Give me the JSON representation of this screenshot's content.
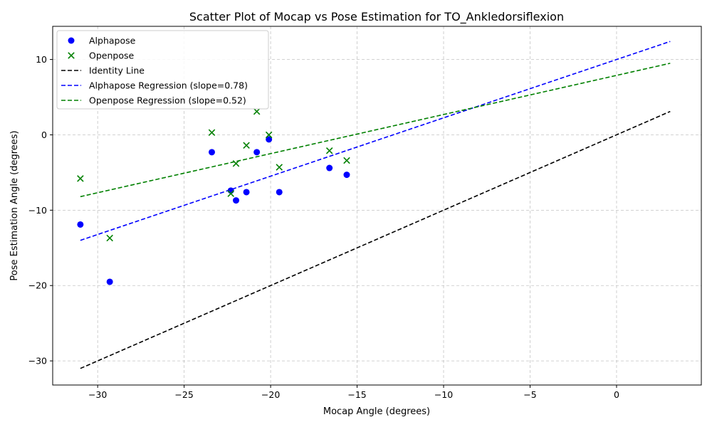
{
  "chart_data": {
    "type": "scatter",
    "title": "Scatter Plot of Mocap vs Pose Estimation for TO_Ankledorsiflexion",
    "xlabel": "Mocap Angle (degrees)",
    "ylabel": "Pose Estimation Angle (degrees)",
    "xlim": [
      -32.6,
      4.9
    ],
    "ylim": [
      -33.2,
      14.4
    ],
    "xticks": [
      -30,
      -25,
      -20,
      -15,
      -10,
      -5,
      0
    ],
    "yticks": [
      -30,
      -20,
      -10,
      0,
      10
    ],
    "xtick_labels": [
      "−30",
      "−25",
      "−20",
      "−15",
      "−10",
      "−5",
      "0"
    ],
    "ytick_labels": [
      "−30",
      "−20",
      "−10",
      "0",
      "10"
    ],
    "grid": true,
    "legend_position": "top-left",
    "series": [
      {
        "name": "Alphapose",
        "kind": "scatter",
        "marker": "circle",
        "color": "#0000ff",
        "points": [
          [
            -31.0,
            -11.9
          ],
          [
            -29.3,
            -19.5
          ],
          [
            -23.4,
            -2.3
          ],
          [
            -22.3,
            -7.4
          ],
          [
            -22.0,
            -8.7
          ],
          [
            -21.4,
            -7.6
          ],
          [
            -20.8,
            -2.3
          ],
          [
            -20.1,
            -0.6
          ],
          [
            -19.5,
            -7.6
          ],
          [
            -16.6,
            -4.4
          ],
          [
            -15.6,
            -5.3
          ]
        ]
      },
      {
        "name": "Openpose",
        "kind": "scatter",
        "marker": "x",
        "color": "#008000",
        "points": [
          [
            -31.0,
            -5.8
          ],
          [
            -29.3,
            -13.7
          ],
          [
            -23.4,
            0.3
          ],
          [
            -22.3,
            -7.8
          ],
          [
            -22.0,
            -3.8
          ],
          [
            -21.4,
            -1.4
          ],
          [
            -20.8,
            3.1
          ],
          [
            -20.1,
            0.0
          ],
          [
            -19.5,
            -4.3
          ],
          [
            -16.6,
            -2.1
          ],
          [
            -15.6,
            -3.4
          ]
        ]
      },
      {
        "name": "Identity Line",
        "kind": "line",
        "style": "dashed",
        "color": "#000000",
        "points": [
          [
            -31.0,
            -31.0
          ],
          [
            3.1,
            3.1
          ]
        ]
      },
      {
        "name": "Alphapose Regression (slope=0.78)",
        "kind": "line",
        "style": "dashed",
        "color": "#0000ff",
        "points": [
          [
            -31.0,
            -14.0
          ],
          [
            3.1,
            12.4
          ]
        ]
      },
      {
        "name": "Openpose Regression (slope=0.52)",
        "kind": "line",
        "style": "dashed",
        "color": "#008000",
        "points": [
          [
            -31.0,
            -8.2
          ],
          [
            3.1,
            9.5
          ]
        ]
      }
    ]
  }
}
